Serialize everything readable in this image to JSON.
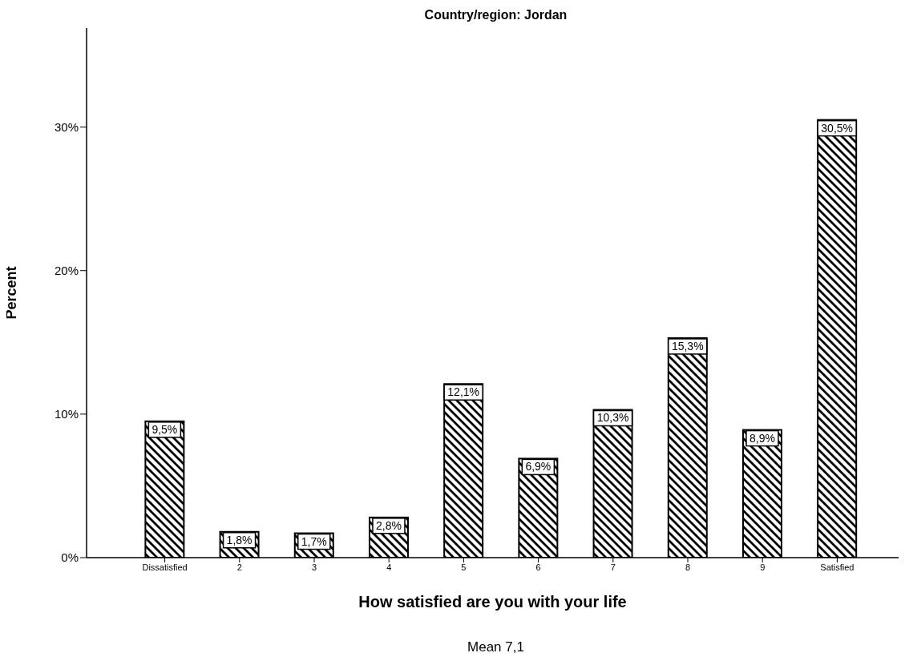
{
  "chart_data": {
    "type": "bar",
    "title": "Country/region: Jordan",
    "xlabel": "How satisfied are you with your life",
    "ylabel": "Percent",
    "categories": [
      "Dissatisfied",
      "2",
      "3",
      "4",
      "5",
      "6",
      "7",
      "8",
      "9",
      "Satisfied"
    ],
    "values": [
      9.5,
      1.8,
      1.7,
      2.8,
      12.1,
      6.9,
      10.3,
      15.3,
      8.9,
      30.5
    ],
    "value_labels": [
      "9,5%",
      "1,8%",
      "1,7%",
      "2,8%",
      "12,1%",
      "6,9%",
      "10,3%",
      "15,3%",
      "8,9%",
      "30,5%"
    ],
    "color": "#000000",
    "ylim": [
      0,
      36.9
    ],
    "yticks": [
      {
        "value": 0,
        "label": "0%"
      },
      {
        "value": 10,
        "label": "10%"
      },
      {
        "value": 20,
        "label": "20%"
      },
      {
        "value": 30,
        "label": "30%"
      }
    ],
    "grid": false,
    "legend": false,
    "annotations": [
      "Mean 7,1"
    ]
  }
}
